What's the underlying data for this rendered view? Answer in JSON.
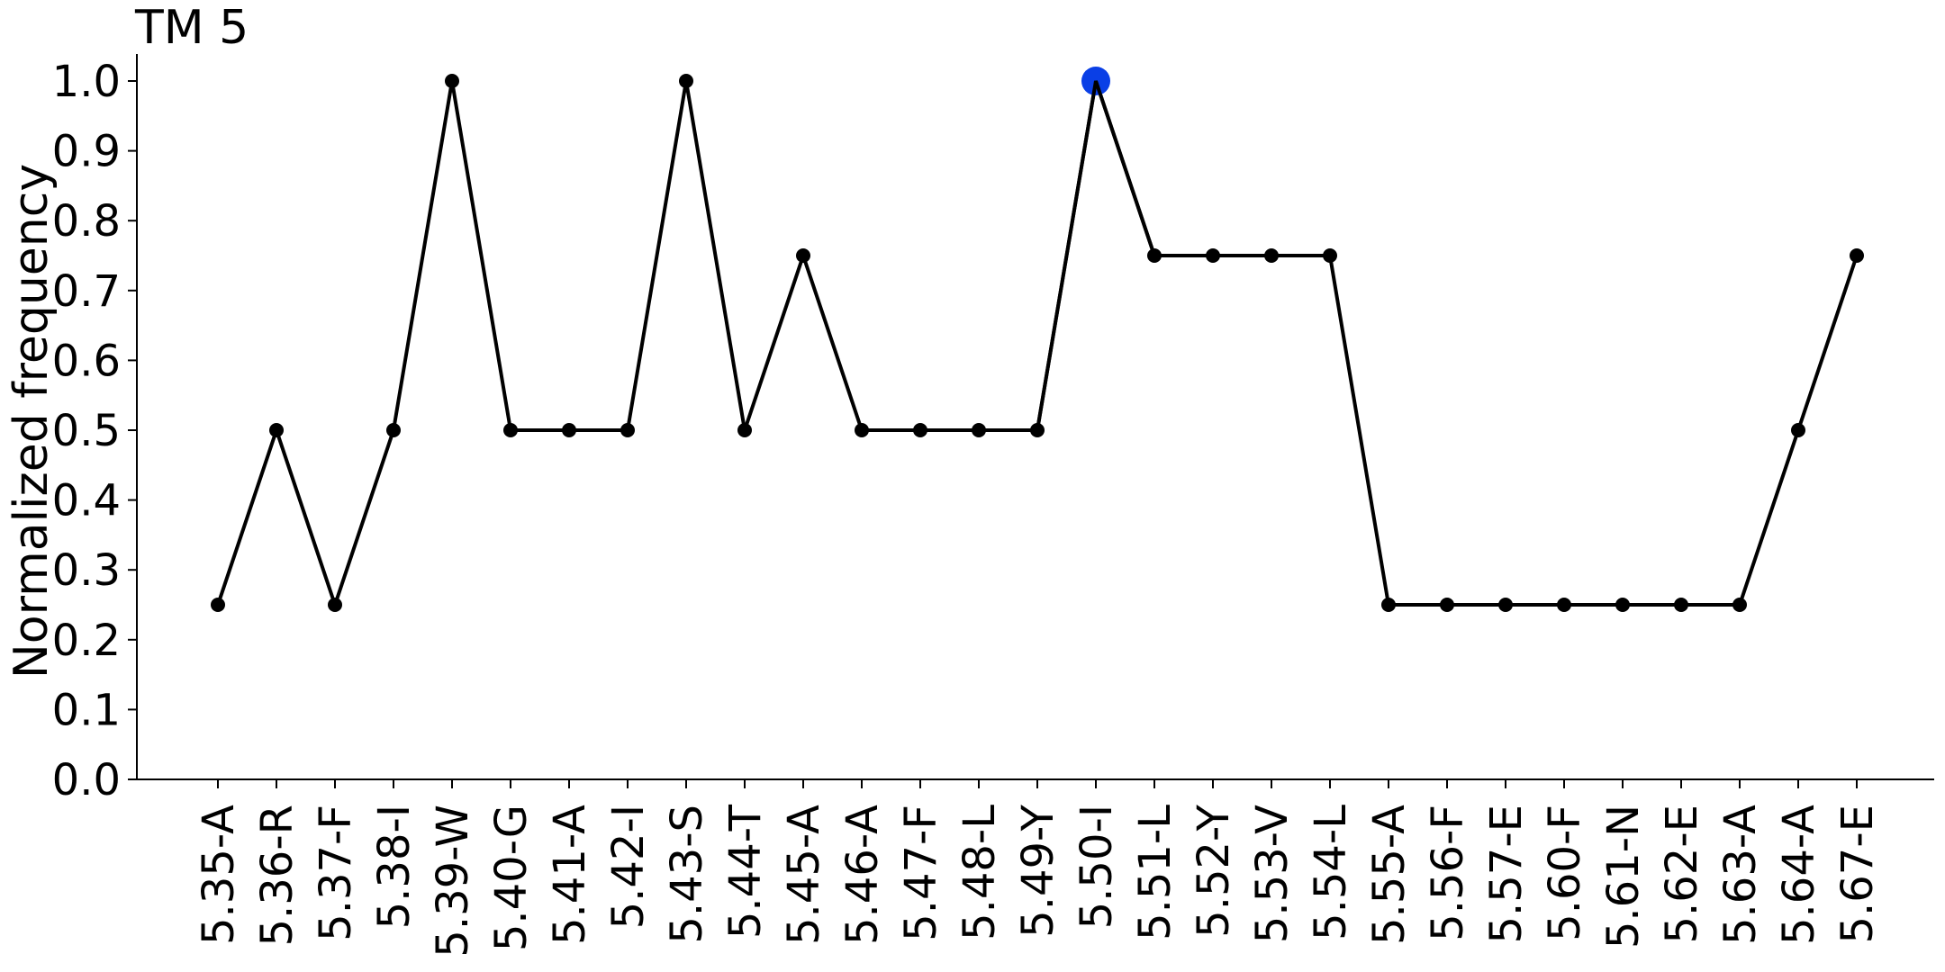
{
  "chart_data": {
    "type": "line",
    "title": "TM 5",
    "xlabel": "",
    "ylabel": "Normalized frequency",
    "categories": [
      "5.35-A",
      "5.36-R",
      "5.37-F",
      "5.38-I",
      "5.39-W",
      "5.40-G",
      "5.41-A",
      "5.42-I",
      "5.43-S",
      "5.44-T",
      "5.45-A",
      "5.46-A",
      "5.47-F",
      "5.48-L",
      "5.49-Y",
      "5.50-I",
      "5.51-L",
      "5.52-Y",
      "5.53-V",
      "5.54-L",
      "5.55-A",
      "5.56-F",
      "5.57-E",
      "5.60-F",
      "5.61-N",
      "5.62-E",
      "5.63-A",
      "5.64-A",
      "5.67-E"
    ],
    "values": [
      0.25,
      0.5,
      0.25,
      0.5,
      1.0,
      0.5,
      0.5,
      0.5,
      1.0,
      0.5,
      0.75,
      0.5,
      0.5,
      0.5,
      0.5,
      1.0,
      0.75,
      0.75,
      0.75,
      0.75,
      0.25,
      0.25,
      0.25,
      0.25,
      0.25,
      0.25,
      0.25,
      0.5,
      0.75
    ],
    "ylim": [
      0,
      1.0
    ],
    "yticks": [
      "0.0",
      "0.1",
      "0.2",
      "0.3",
      "0.4",
      "0.5",
      "0.6",
      "0.7",
      "0.8",
      "0.9",
      "1.0"
    ],
    "highlight": {
      "category": "5.50-I",
      "color": "#0a3fe6"
    },
    "line_color": "#000000",
    "marker_color": "#000000",
    "grid": false,
    "legend": "none"
  }
}
